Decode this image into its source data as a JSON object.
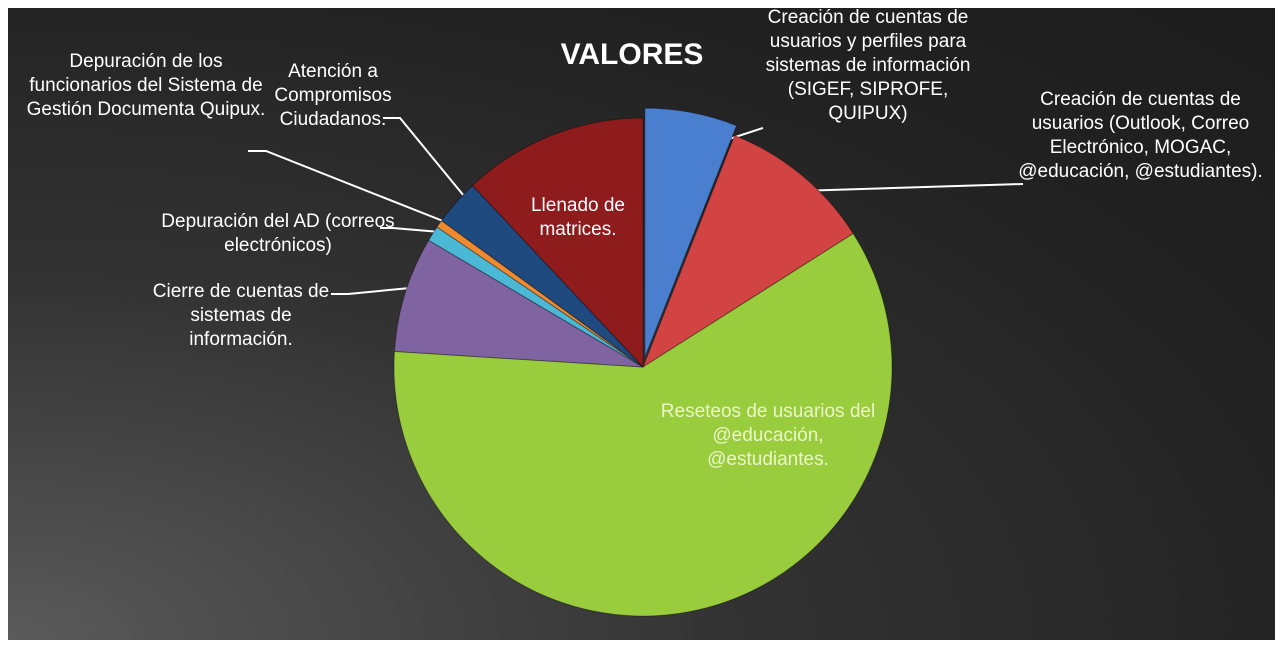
{
  "chart_data": {
    "type": "pie",
    "title": "VALORES",
    "categories": [
      "Creación de cuentas de usuarios y perfiles para sistemas de información (SIGEF, SIPROFE, QUIPUX)",
      "Creación de cuentas de usuarios (Outlook, Correo Electrónico, MOGAC, @educación, @estudiantes).",
      "Reseteos de usuarios del @educación, @estudiantes.",
      "Cierre de cuentas de sistemas de información.",
      "Depuración del AD (correos electrónicos)",
      "Depuración de los funcionarios del Sistema de Gestión Documenta Quipux.",
      "Atención a Compromisos Ciudadanos.",
      "Llenado de matrices."
    ],
    "values": [
      6,
      10,
      60,
      7.5,
      1,
      0.5,
      3,
      12
    ],
    "colors": [
      "#4a7fd0",
      "#d24343",
      "#9acd3e",
      "#8064a2",
      "#4bb8d6",
      "#f08a30",
      "#1f4a80",
      "#8e1c1c"
    ]
  }
}
